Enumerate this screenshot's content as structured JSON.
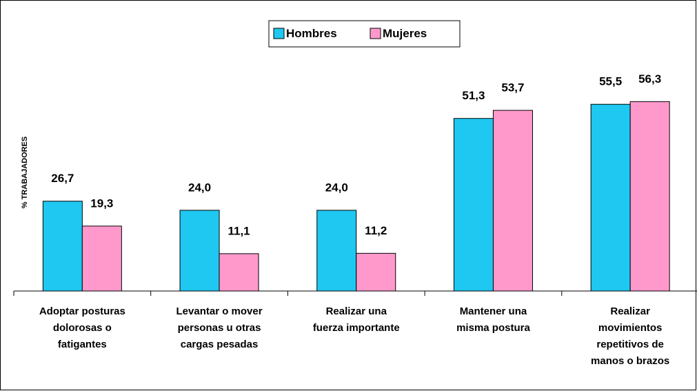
{
  "chart_data": {
    "type": "bar",
    "y_label": "% TRABAJADORES",
    "categories": [
      "Adoptar posturas\ndolorosas o\nfatigantes",
      "Levantar o mover\npersonas u otras\ncargas pesadas",
      "Realizar una\nfuerza importante",
      "Mantener una\nmisma postura",
      "Realizar\nmovimientos\nrepetitivos de\nmanos o brazos"
    ],
    "series": [
      {
        "name": "Hombres",
        "color": "#1ec8f0",
        "values": [
          26.7,
          24.0,
          24.0,
          51.3,
          55.5
        ],
        "value_labels": [
          "26,7",
          "24,0",
          "24,0",
          "51,3",
          "55,5"
        ]
      },
      {
        "name": "Mujeres",
        "color": "#ff99cc",
        "values": [
          19.3,
          11.1,
          11.2,
          53.7,
          56.3
        ],
        "value_labels": [
          "19,3",
          "11,1",
          "11,2",
          "53,7",
          "56,3"
        ]
      }
    ],
    "ylim": [
      0,
      66
    ],
    "legend": "top"
  }
}
